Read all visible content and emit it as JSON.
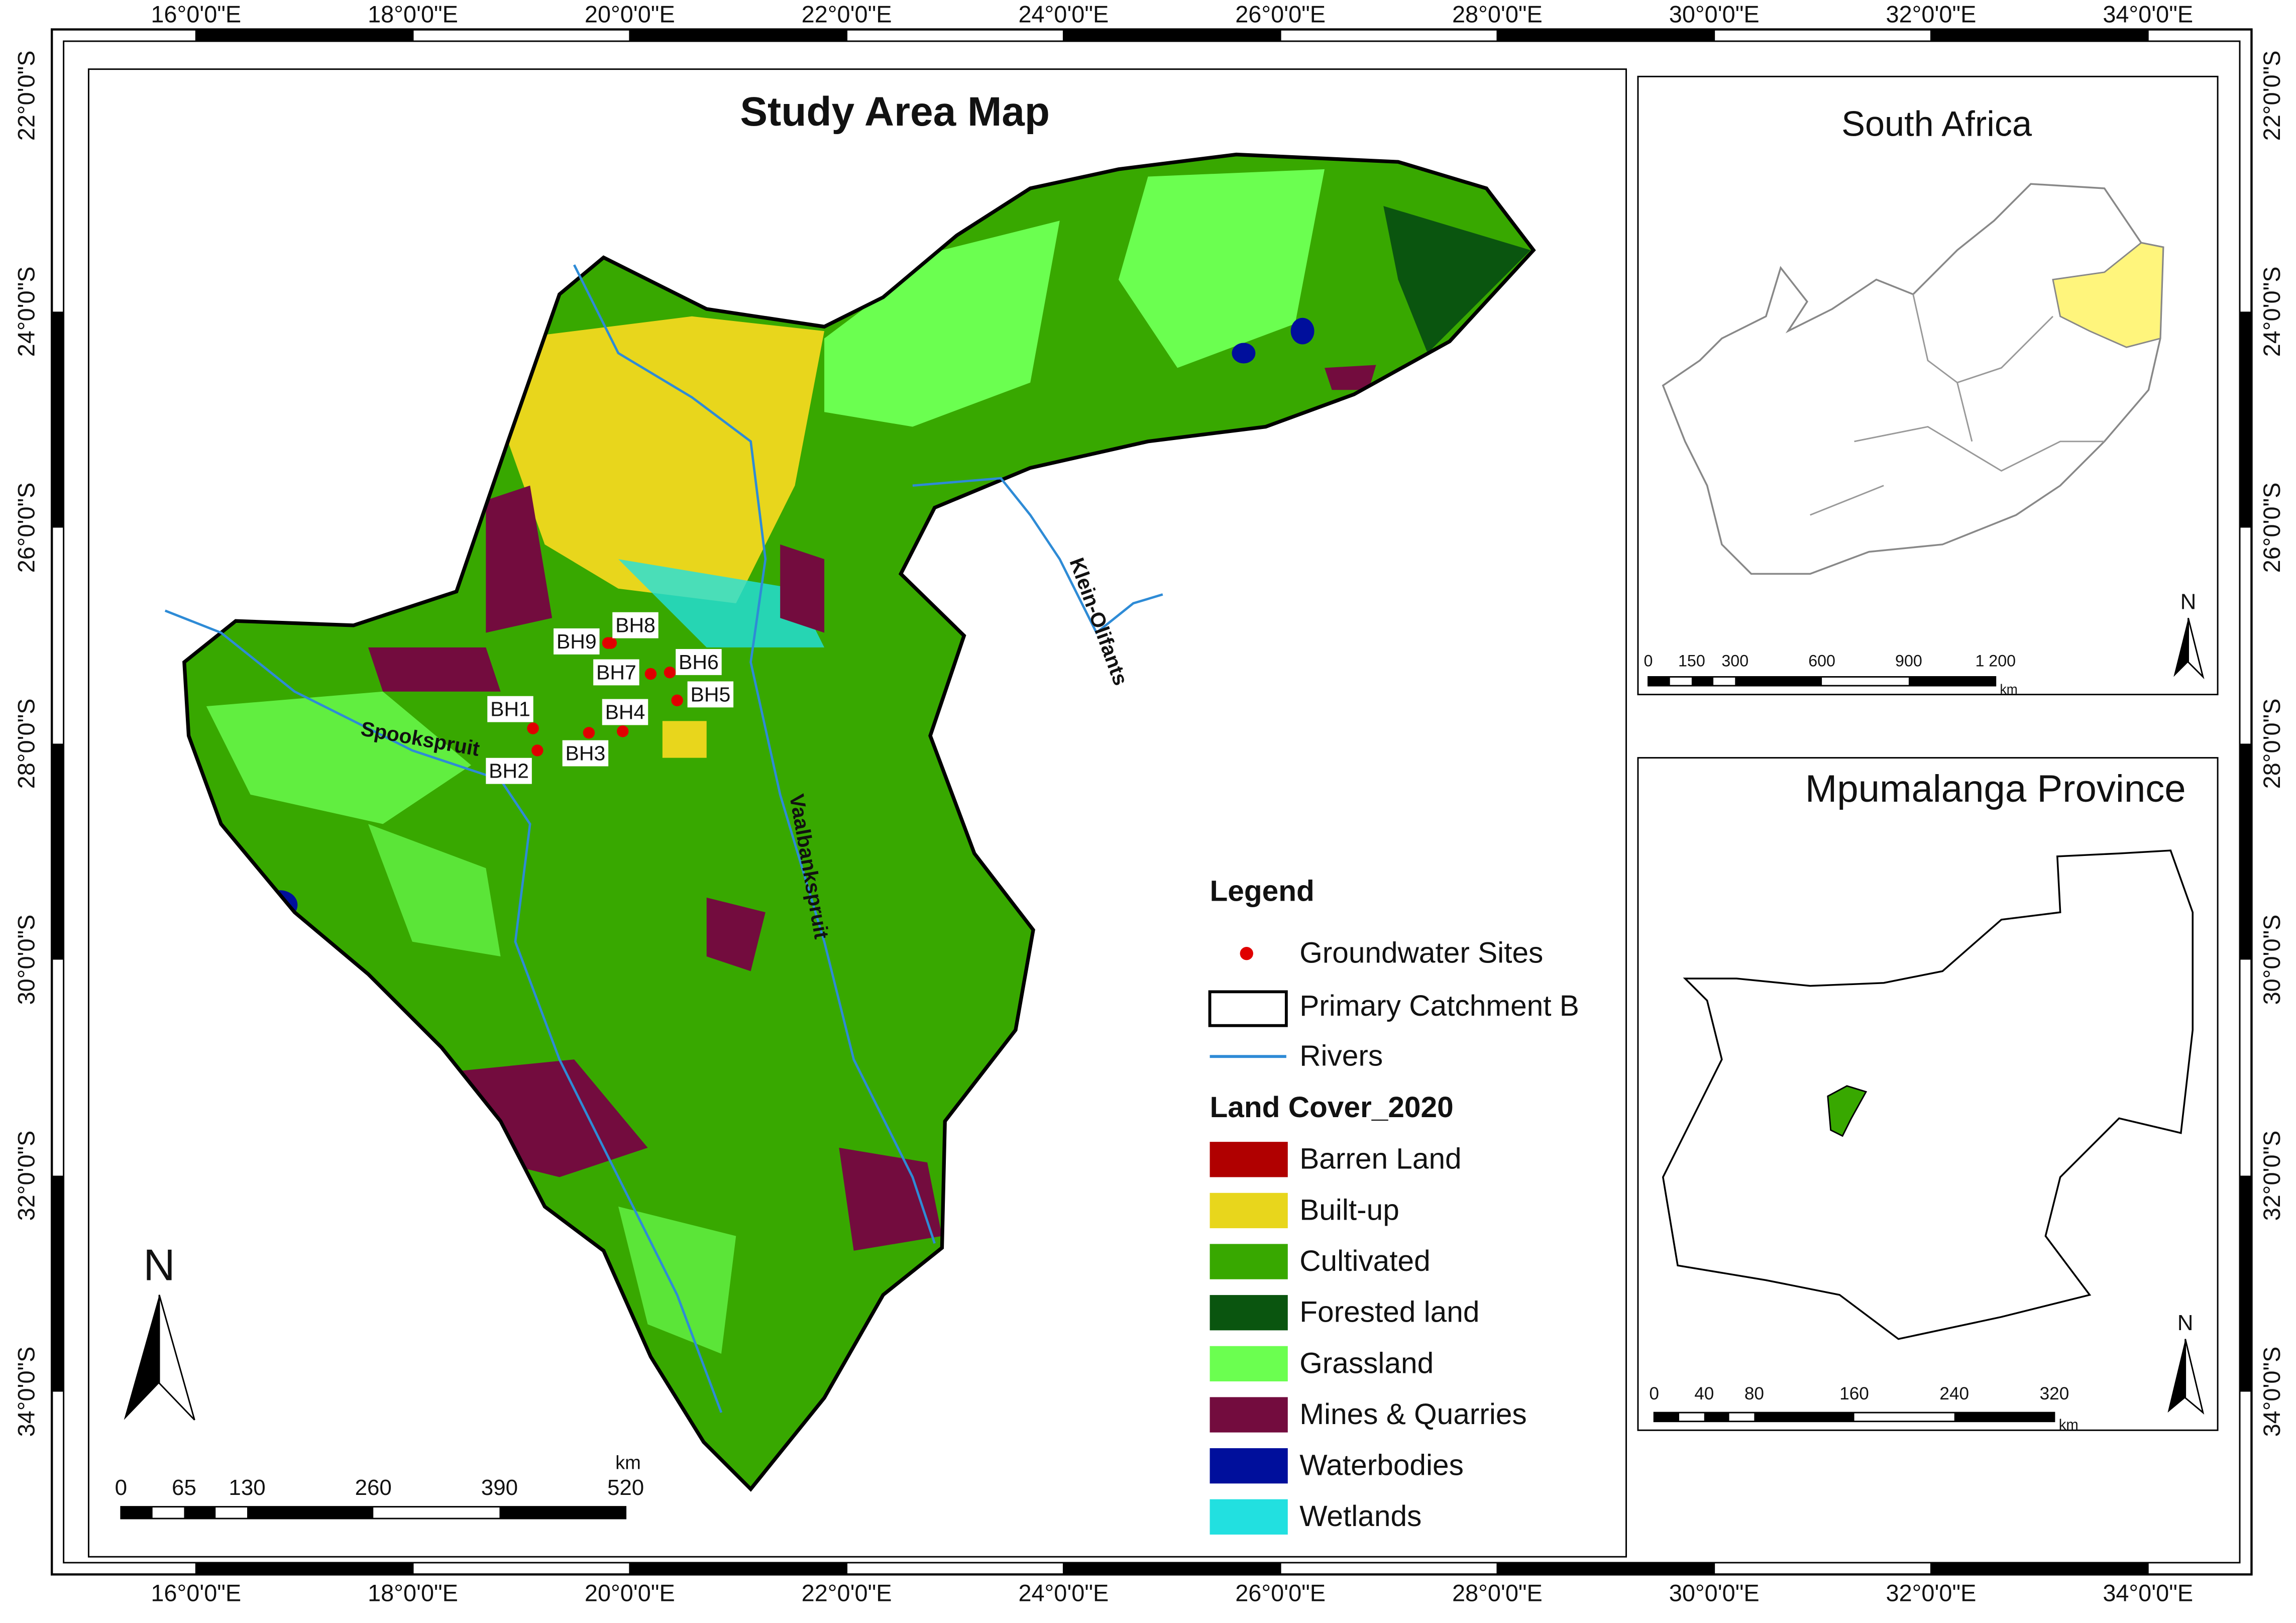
{
  "graticule": {
    "longitudes": [
      "16°0'0\"E",
      "18°0'0\"E",
      "20°0'0\"E",
      "22°0'0\"E",
      "24°0'0\"E",
      "26°0'0\"E",
      "28°0'0\"E",
      "30°0'0\"E",
      "32°0'0\"E",
      "34°0'0\"E"
    ],
    "latitudes": [
      "22°0'0\"S",
      "24°0'0\"S",
      "26°0'0\"S",
      "28°0'0\"S",
      "30°0'0\"S",
      "32°0'0\"S",
      "34°0'0\"S"
    ]
  },
  "main_map": {
    "title": "Study Area Map",
    "sites": [
      "BH1",
      "BH2",
      "BH3",
      "BH4",
      "BH5",
      "BH6",
      "BH7",
      "BH8",
      "BH9"
    ],
    "rivers": [
      "Spookspruit",
      "Vaalbankspruit",
      "Klein-Olifants"
    ],
    "north": "N",
    "scale": {
      "labels": [
        "0",
        "65",
        "130",
        "260",
        "390",
        "520"
      ],
      "unit": "km"
    }
  },
  "legend": {
    "title": "Legend",
    "items": [
      "Groundwater Sites",
      "Primary Catchment B",
      "Rivers"
    ],
    "land_cover_title": "Land Cover_2020",
    "classes": [
      {
        "label": "Barren Land",
        "color": "#b00000"
      },
      {
        "label": "Built-up",
        "color": "#e8d61c"
      },
      {
        "label": "Cultivated",
        "color": "#38a800"
      },
      {
        "label": "Forested land",
        "color": "#0a550f"
      },
      {
        "label": "Grassland",
        "color": "#6bff50"
      },
      {
        "label": "Mines & Quarries",
        "color": "#730c3e"
      },
      {
        "label": "Waterbodies",
        "color": "#000f9c"
      },
      {
        "label": "Wetlands",
        "color": "#22e0e0"
      }
    ]
  },
  "insets": [
    {
      "title": "South Africa",
      "north": "N",
      "scale": {
        "labels": [
          "0",
          "150",
          "300",
          "600",
          "900",
          "1 200"
        ],
        "unit": "km"
      }
    },
    {
      "title": "Mpumalanga Province",
      "north": "N",
      "scale": {
        "labels": [
          "0",
          "40",
          "80",
          "160",
          "240",
          "320"
        ],
        "unit": "km"
      }
    }
  ]
}
